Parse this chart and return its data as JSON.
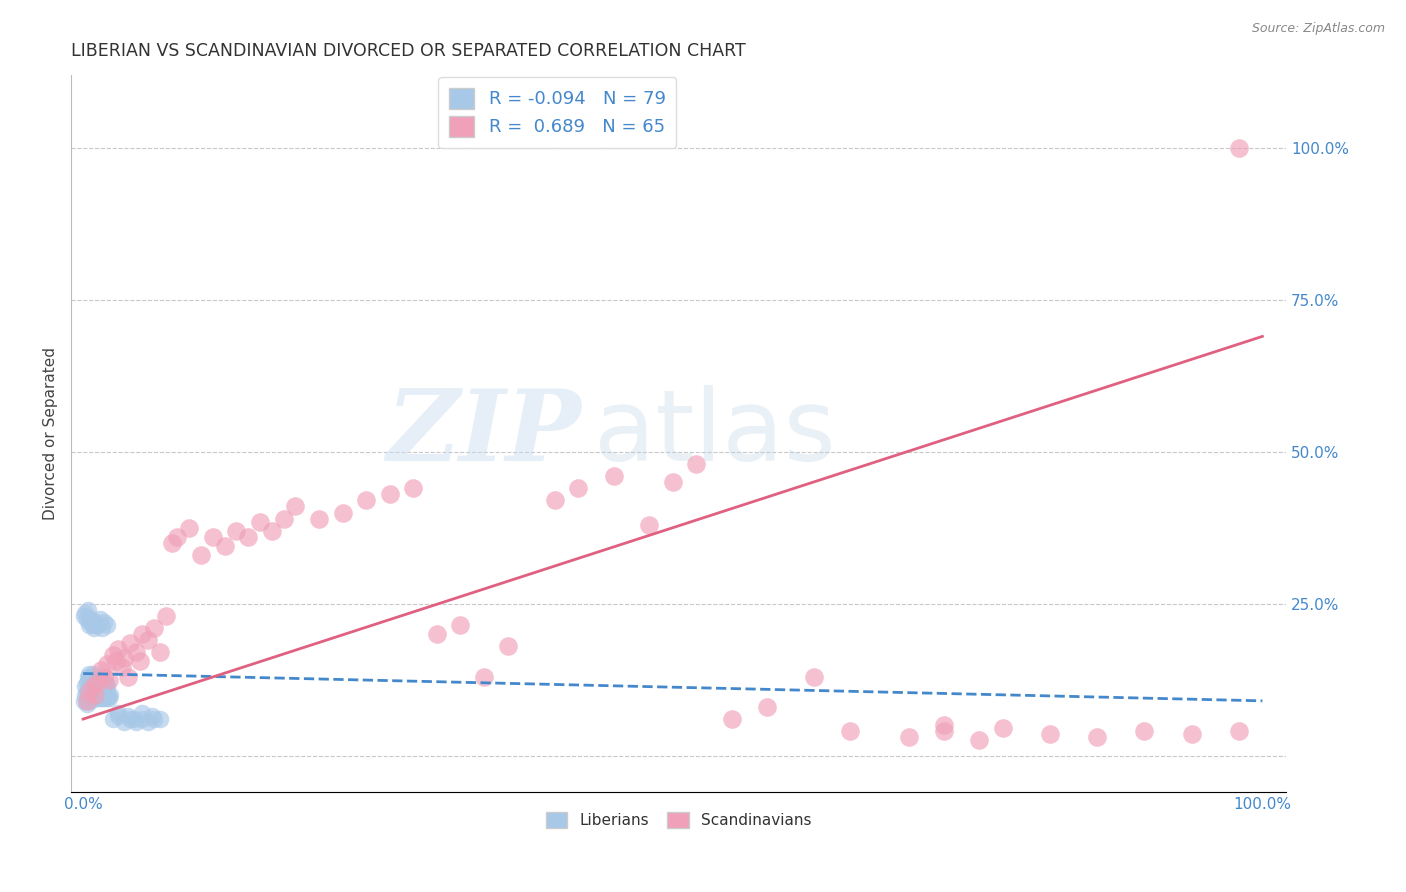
{
  "title": "LIBERIAN VS SCANDINAVIAN DIVORCED OR SEPARATED CORRELATION CHART",
  "source": "Source: ZipAtlas.com",
  "ylabel": "Divorced or Separated",
  "xlim": [
    -0.01,
    1.02
  ],
  "ylim": [
    -0.06,
    1.12
  ],
  "x_ticks": [
    0.0,
    0.2,
    0.4,
    0.6,
    0.8,
    1.0
  ],
  "y_ticks": [
    0.0,
    0.25,
    0.5,
    0.75,
    1.0
  ],
  "background_color": "#ffffff",
  "grid_color": "#c8c8c8",
  "watermark_zip": "ZIP",
  "watermark_atlas": "atlas",
  "legend_R_liberian": "-0.094",
  "legend_N_liberian": "79",
  "legend_R_scandinavian": "0.689",
  "legend_N_scandinavian": "65",
  "liberian_color": "#a8c8e8",
  "scandinavian_color": "#f0a0b8",
  "liberian_line_color": "#4488cc",
  "scandinavian_line_color": "#e06080",
  "liberian_scatter_x": [
    0.001,
    0.002,
    0.002,
    0.003,
    0.003,
    0.003,
    0.004,
    0.004,
    0.004,
    0.005,
    0.005,
    0.005,
    0.005,
    0.006,
    0.006,
    0.006,
    0.007,
    0.007,
    0.007,
    0.008,
    0.008,
    0.008,
    0.009,
    0.009,
    0.01,
    0.01,
    0.01,
    0.011,
    0.011,
    0.012,
    0.012,
    0.013,
    0.013,
    0.014,
    0.014,
    0.015,
    0.015,
    0.016,
    0.016,
    0.017,
    0.017,
    0.018,
    0.018,
    0.019,
    0.019,
    0.02,
    0.02,
    0.021,
    0.022,
    0.023,
    0.001,
    0.002,
    0.003,
    0.004,
    0.005,
    0.006,
    0.007,
    0.008,
    0.009,
    0.01,
    0.012,
    0.014,
    0.016,
    0.018,
    0.02,
    0.025,
    0.03,
    0.035,
    0.04,
    0.045,
    0.05,
    0.055,
    0.06,
    0.03,
    0.038,
    0.043,
    0.05,
    0.058,
    0.065
  ],
  "liberian_scatter_y": [
    0.09,
    0.1,
    0.115,
    0.085,
    0.105,
    0.12,
    0.095,
    0.11,
    0.13,
    0.1,
    0.115,
    0.125,
    0.135,
    0.09,
    0.105,
    0.12,
    0.095,
    0.11,
    0.13,
    0.1,
    0.115,
    0.135,
    0.105,
    0.125,
    0.095,
    0.11,
    0.13,
    0.1,
    0.12,
    0.095,
    0.115,
    0.1,
    0.125,
    0.095,
    0.115,
    0.1,
    0.12,
    0.095,
    0.115,
    0.1,
    0.12,
    0.095,
    0.115,
    0.1,
    0.12,
    0.095,
    0.115,
    0.1,
    0.095,
    0.1,
    0.23,
    0.235,
    0.225,
    0.24,
    0.215,
    0.22,
    0.225,
    0.215,
    0.21,
    0.22,
    0.215,
    0.225,
    0.21,
    0.22,
    0.215,
    0.06,
    0.065,
    0.055,
    0.06,
    0.055,
    0.06,
    0.055,
    0.06,
    0.07,
    0.065,
    0.06,
    0.07,
    0.065,
    0.06
  ],
  "scandinavian_scatter_x": [
    0.003,
    0.005,
    0.008,
    0.01,
    0.012,
    0.015,
    0.018,
    0.02,
    0.022,
    0.025,
    0.028,
    0.03,
    0.033,
    0.035,
    0.038,
    0.04,
    0.045,
    0.048,
    0.05,
    0.055,
    0.06,
    0.065,
    0.07,
    0.075,
    0.08,
    0.09,
    0.1,
    0.11,
    0.12,
    0.13,
    0.14,
    0.15,
    0.16,
    0.17,
    0.18,
    0.2,
    0.22,
    0.24,
    0.26,
    0.28,
    0.3,
    0.32,
    0.34,
    0.36,
    0.4,
    0.42,
    0.45,
    0.48,
    0.5,
    0.52,
    0.55,
    0.58,
    0.62,
    0.65,
    0.7,
    0.73,
    0.76,
    0.78,
    0.82,
    0.86,
    0.9,
    0.94,
    0.98,
    0.73,
    0.98
  ],
  "scandinavian_scatter_y": [
    0.09,
    0.105,
    0.115,
    0.1,
    0.12,
    0.14,
    0.13,
    0.15,
    0.125,
    0.165,
    0.155,
    0.175,
    0.145,
    0.16,
    0.13,
    0.185,
    0.17,
    0.155,
    0.2,
    0.19,
    0.21,
    0.17,
    0.23,
    0.35,
    0.36,
    0.375,
    0.33,
    0.36,
    0.345,
    0.37,
    0.36,
    0.385,
    0.37,
    0.39,
    0.41,
    0.39,
    0.4,
    0.42,
    0.43,
    0.44,
    0.2,
    0.215,
    0.13,
    0.18,
    0.42,
    0.44,
    0.46,
    0.38,
    0.45,
    0.48,
    0.06,
    0.08,
    0.13,
    0.04,
    0.03,
    0.05,
    0.025,
    0.045,
    0.035,
    0.03,
    0.04,
    0.035,
    0.04,
    0.04,
    1.0
  ],
  "liberian_trend_x": [
    0.0,
    1.0
  ],
  "liberian_trend_y": [
    0.135,
    0.09
  ],
  "scandinavian_trend_x": [
    0.0,
    1.0
  ],
  "scandinavian_trend_y": [
    0.06,
    0.69
  ]
}
